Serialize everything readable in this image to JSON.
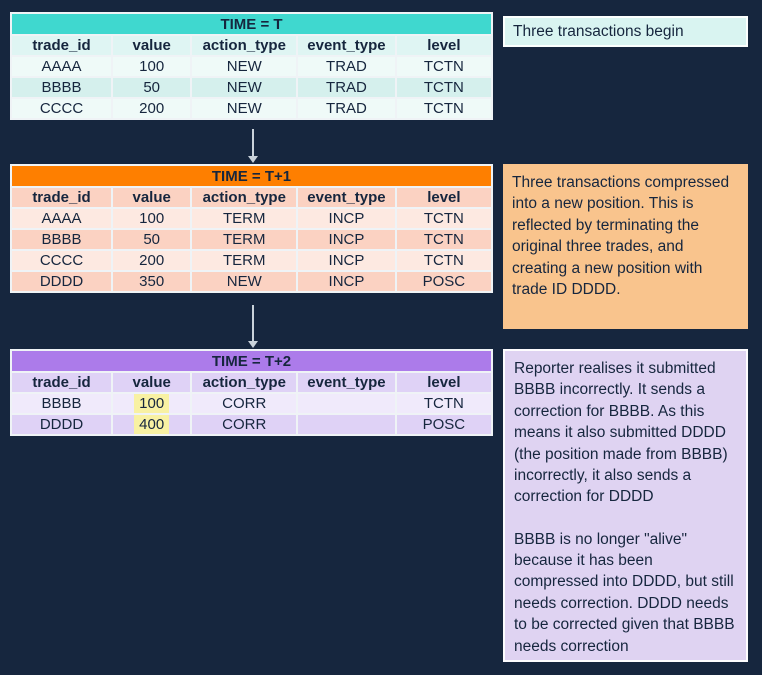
{
  "colors": {
    "bg": "#16263E",
    "text": "#16263E",
    "grid": "#EFF3F6",
    "arrow": "#C9D2DA",
    "hl": "#F8F1A3",
    "teal": "#3FD8CF",
    "teal-hdr": "#DFF5F3",
    "teal-odd": "#EFFAF8",
    "teal-even": "#D5F0ED",
    "orange": "#FE7F00",
    "orange-hdr": "#FBD2C2",
    "orange-odd": "#FDE9E1",
    "orange-even": "#FBD2C2",
    "purple": "#AC7BEA",
    "purple-hdr": "#DFD2F6",
    "purple-odd": "#F0EAFB",
    "purple-even": "#DFD2F6",
    "note1-bg": "#D9F4F1",
    "note2-bg": "#F9C48D",
    "note3-bg": "#DFD3F2"
  },
  "tables": [
    {
      "title": "TIME = T",
      "columns": [
        "trade_id",
        "value",
        "action_type",
        "event_type",
        "level"
      ],
      "rows": [
        {
          "cells": [
            "AAAA",
            "100",
            "NEW",
            "TRAD",
            "TCTN"
          ]
        },
        {
          "cells": [
            "BBBB",
            "50",
            "NEW",
            "TRAD",
            "TCTN"
          ]
        },
        {
          "cells": [
            "CCCC",
            "200",
            "NEW",
            "TRAD",
            "TCTN"
          ]
        }
      ]
    },
    {
      "title": "TIME = T+1",
      "columns": [
        "trade_id",
        "value",
        "action_type",
        "event_type",
        "level"
      ],
      "rows": [
        {
          "cells": [
            "AAAA",
            "100",
            "TERM",
            "INCP",
            "TCTN"
          ]
        },
        {
          "cells": [
            "BBBB",
            "50",
            "TERM",
            "INCP",
            "TCTN"
          ]
        },
        {
          "cells": [
            "CCCC",
            "200",
            "TERM",
            "INCP",
            "TCTN"
          ]
        },
        {
          "cells": [
            "DDDD",
            "350",
            "NEW",
            "INCP",
            "POSC"
          ]
        }
      ]
    },
    {
      "title": "TIME = T+2",
      "columns": [
        "trade_id",
        "value",
        "action_type",
        "event_type",
        "level"
      ],
      "rows": [
        {
          "cells": [
            "BBBB",
            "100",
            "CORR",
            "",
            "TCTN"
          ],
          "highlight": [
            1
          ]
        },
        {
          "cells": [
            "DDDD",
            "400",
            "CORR",
            "",
            "POSC"
          ],
          "highlight": [
            1
          ]
        }
      ]
    }
  ],
  "notes": [
    {
      "paragraphs": [
        "Three transactions begin"
      ]
    },
    {
      "paragraphs": [
        "Three transactions compressed into a new position. This is reflected by terminating the original three trades, and creating a new position with trade ID DDDD."
      ]
    },
    {
      "paragraphs": [
        "Reporter realises it submitted BBBB incorrectly. It sends a correction for BBBB. As this means it also submitted DDDD (the position made from BBBB) incorrectly, it also sends a correction for DDDD",
        "BBBB is no longer \"alive\" because it has been compressed into DDDD, but still needs correction. DDDD needs to be corrected given that BBBB needs correction"
      ]
    }
  ]
}
